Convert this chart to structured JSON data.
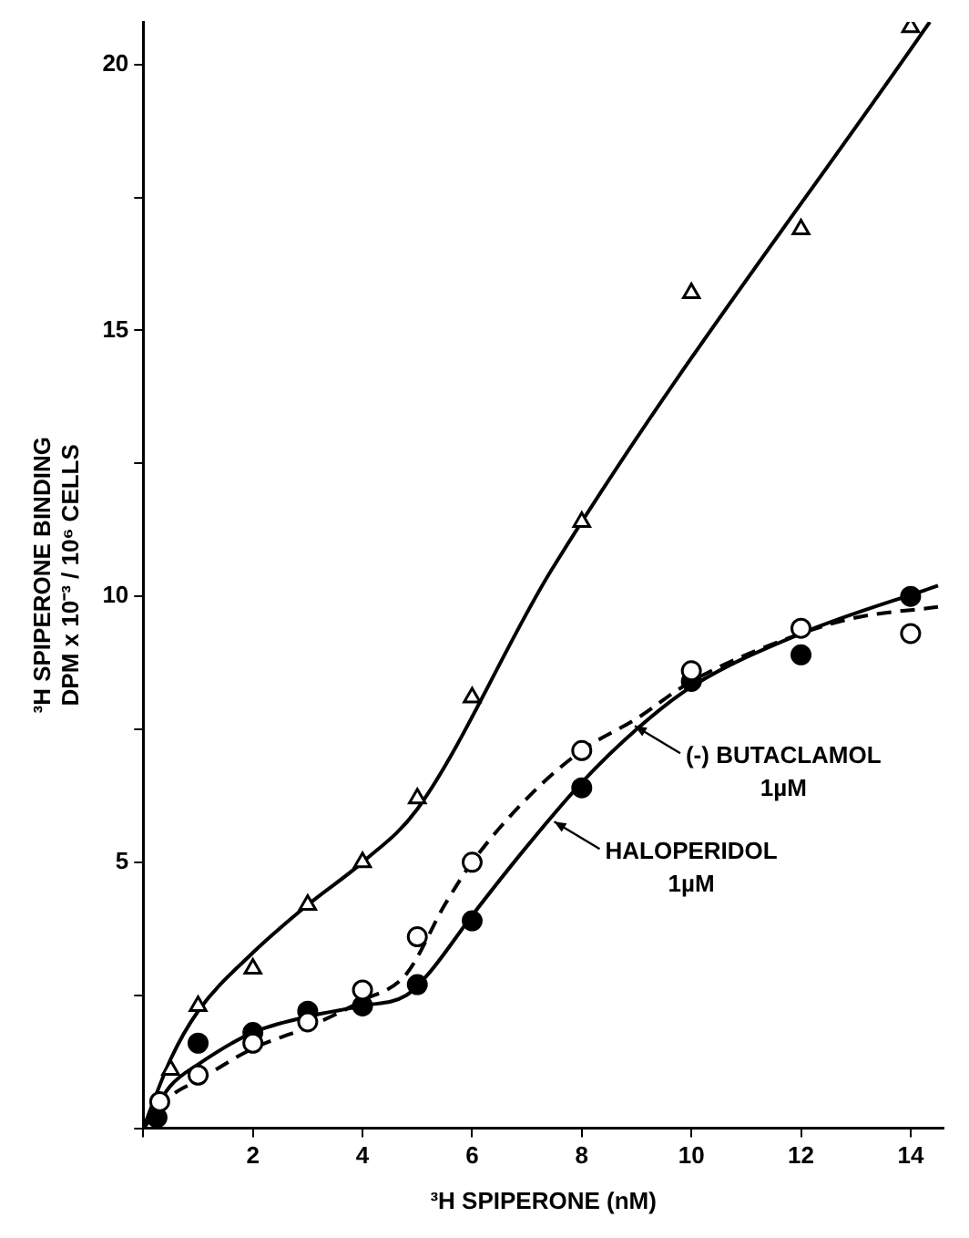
{
  "chart_data": {
    "type": "scatter",
    "xlabel": "³H SPIPERONE (nM)",
    "ylabel": "³H SPIPERONE BINDING\nDPM x 10⁻³ / 10⁶ CELLS",
    "xlim": [
      0,
      14.6
    ],
    "ylim": [
      0,
      20.8
    ],
    "xticks": [
      {
        "value": 0,
        "label": null
      },
      2,
      4,
      6,
      8,
      10,
      12,
      14
    ],
    "yticks": [
      {
        "value": 0,
        "label": null
      },
      {
        "value": 2.5,
        "label": null
      },
      5,
      {
        "value": 7.5,
        "label": null
      },
      10,
      {
        "value": 12.5,
        "label": null
      },
      15,
      {
        "value": 17.5,
        "label": null
      },
      20
    ],
    "grid": false,
    "legend": false,
    "series": [
      {
        "type": "scatter",
        "marker": "triangle",
        "color": "#ffffff",
        "x": [
          0.5,
          1,
          2,
          3,
          4,
          5,
          6,
          8,
          10,
          12,
          14
        ],
        "values": [
          1.1,
          2.3,
          3.0,
          4.2,
          5.0,
          6.2,
          8.1,
          11.4,
          15.7,
          16.9,
          20.7
        ]
      },
      {
        "type": "scatter",
        "marker": "circle",
        "color": "#000000",
        "x": [
          0.25,
          1,
          2,
          3,
          4,
          5,
          6,
          8,
          10,
          12,
          14
        ],
        "values": [
          0.2,
          1.6,
          1.8,
          2.2,
          2.3,
          2.7,
          3.9,
          6.4,
          8.4,
          8.9,
          10.0
        ]
      },
      {
        "type": "scatter",
        "marker": "circle",
        "color": "#ffffff",
        "x": [
          0.3,
          1,
          2,
          3,
          4,
          5,
          6,
          8,
          10,
          12,
          14
        ],
        "values": [
          0.5,
          1.0,
          1.6,
          2.0,
          2.6,
          3.6,
          5.0,
          7.1,
          8.6,
          9.4,
          9.3
        ]
      },
      {
        "type": "line",
        "marker": "none",
        "line_style": "solid",
        "color": "#000000",
        "x": [
          0,
          0.5,
          1,
          2,
          3,
          4,
          5,
          7.45,
          14.35
        ],
        "values": [
          0,
          1.3,
          2.2,
          3.3,
          4.2,
          5.0,
          6.0,
          10.5,
          20.8
        ]
      },
      {
        "type": "line",
        "marker": "none",
        "line_style": "solid",
        "color": "#000000",
        "x": [
          0,
          0.5,
          1,
          2,
          3,
          4,
          4.8,
          5.2,
          6,
          7,
          8,
          9,
          10,
          12,
          14.5
        ],
        "values": [
          0,
          0.8,
          1.2,
          1.8,
          2.1,
          2.3,
          2.5,
          2.9,
          4.0,
          5.3,
          6.5,
          7.5,
          8.3,
          9.3,
          10.2
        ]
      },
      {
        "type": "line",
        "marker": "none",
        "line_style": "dashed",
        "color": "#000000",
        "x": [
          0,
          0.5,
          1,
          2,
          3,
          4,
          4.8,
          5.5,
          6,
          7,
          8,
          9,
          10,
          12,
          13,
          14.5
        ],
        "values": [
          0,
          0.6,
          0.9,
          1.5,
          1.9,
          2.4,
          2.9,
          4.2,
          5.0,
          6.2,
          7.1,
          7.7,
          8.4,
          9.3,
          9.6,
          9.8
        ]
      }
    ],
    "annotations": [
      {
        "text": "(-) BUTACLAMOL\n1µM",
        "x": 8.9,
        "y": 7.6
      },
      {
        "text": "HALOPERIDOL\n1µM",
        "x": 7.43,
        "y": 5.8
      }
    ]
  }
}
